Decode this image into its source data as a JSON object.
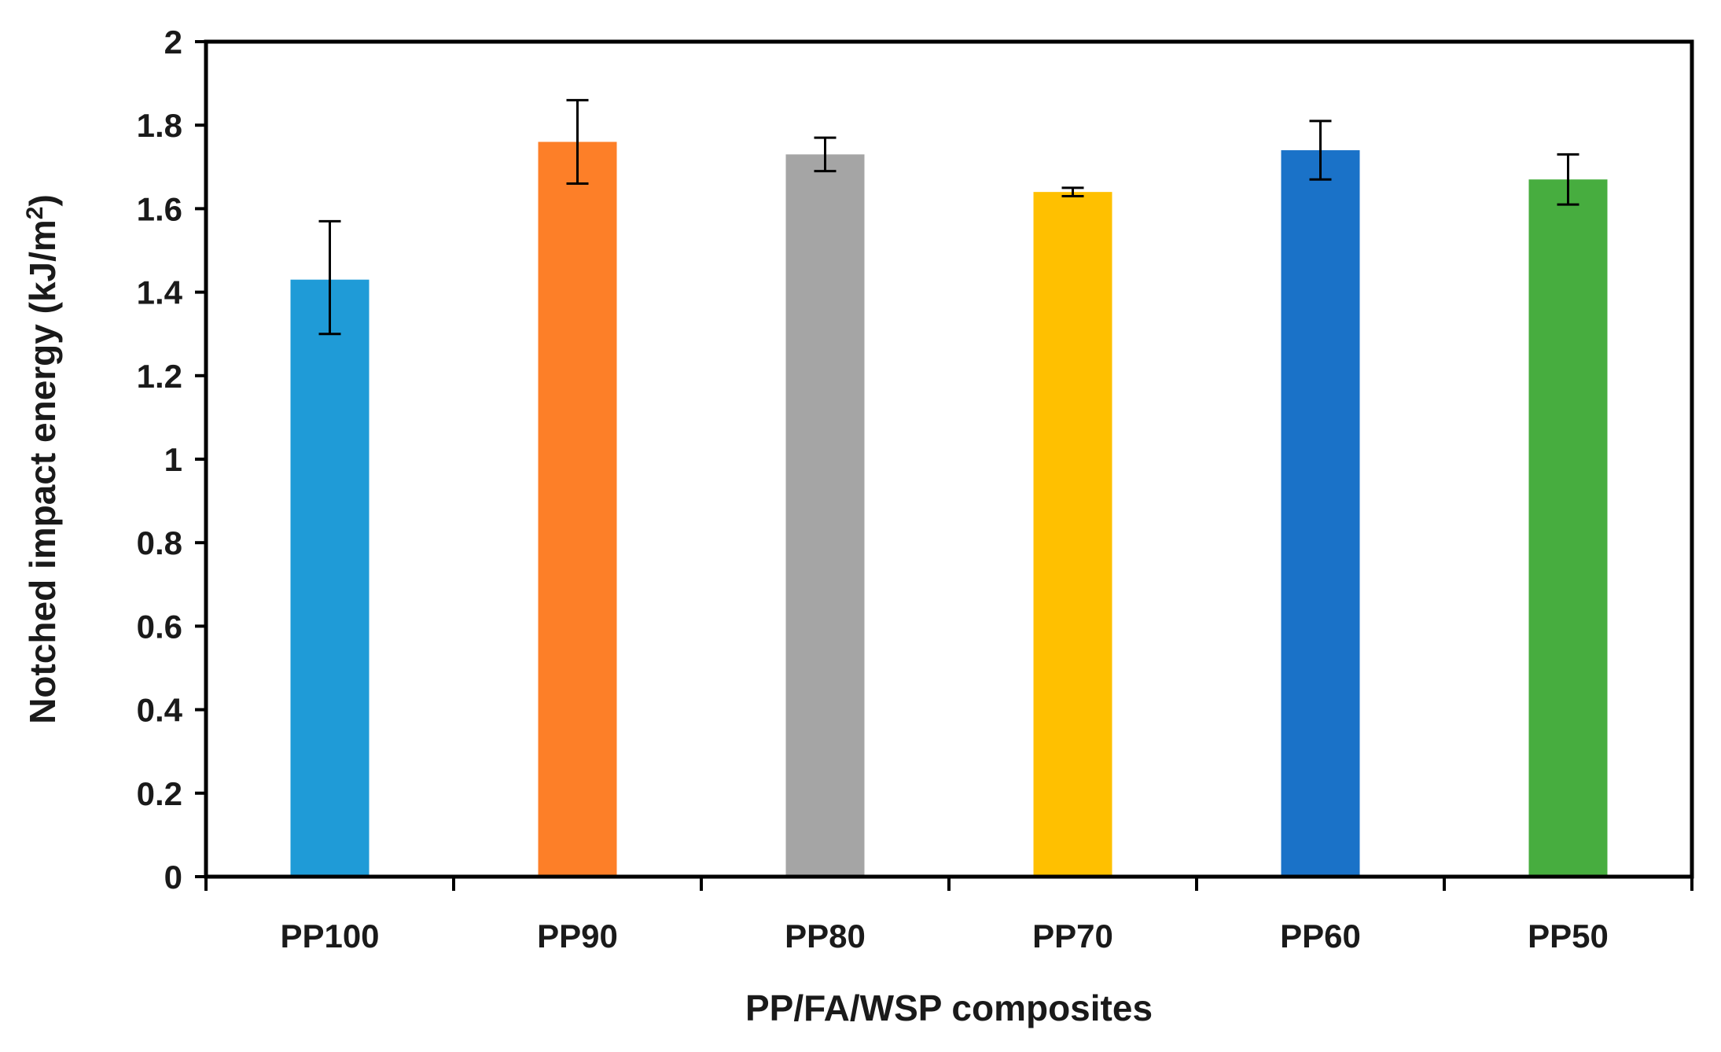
{
  "chart_data": {
    "type": "bar",
    "title": "",
    "xlabel": "PP/FA/WSP composites",
    "ylabel_main": "Notched impact energy (kJ/m",
    "ylabel_sup": "2",
    "ylabel_close": ")",
    "ylim": [
      0,
      2
    ],
    "yticks": [
      0,
      0.2,
      0.4,
      0.6,
      0.8,
      1,
      1.2,
      1.4,
      1.6,
      1.8,
      2
    ],
    "ytick_labels": [
      "0",
      "0.2",
      "0.4",
      "0.6",
      "0.8",
      "1",
      "1.2",
      "1.4",
      "1.6",
      "1.8",
      "2"
    ],
    "categories": [
      "PP100",
      "PP90",
      "PP80",
      "PP70",
      "PP60",
      "PP50"
    ],
    "values": [
      1.43,
      1.76,
      1.73,
      1.64,
      1.74,
      1.67
    ],
    "error_low": [
      1.3,
      1.66,
      1.69,
      1.63,
      1.67,
      1.61
    ],
    "error_high": [
      1.57,
      1.86,
      1.77,
      1.65,
      1.81,
      1.73
    ],
    "colors": [
      "#1f9bd7",
      "#fd7f28",
      "#a5a5a5",
      "#ffc000",
      "#1a72c8",
      "#47ad3f"
    ],
    "grid": false,
    "legend": "none"
  }
}
